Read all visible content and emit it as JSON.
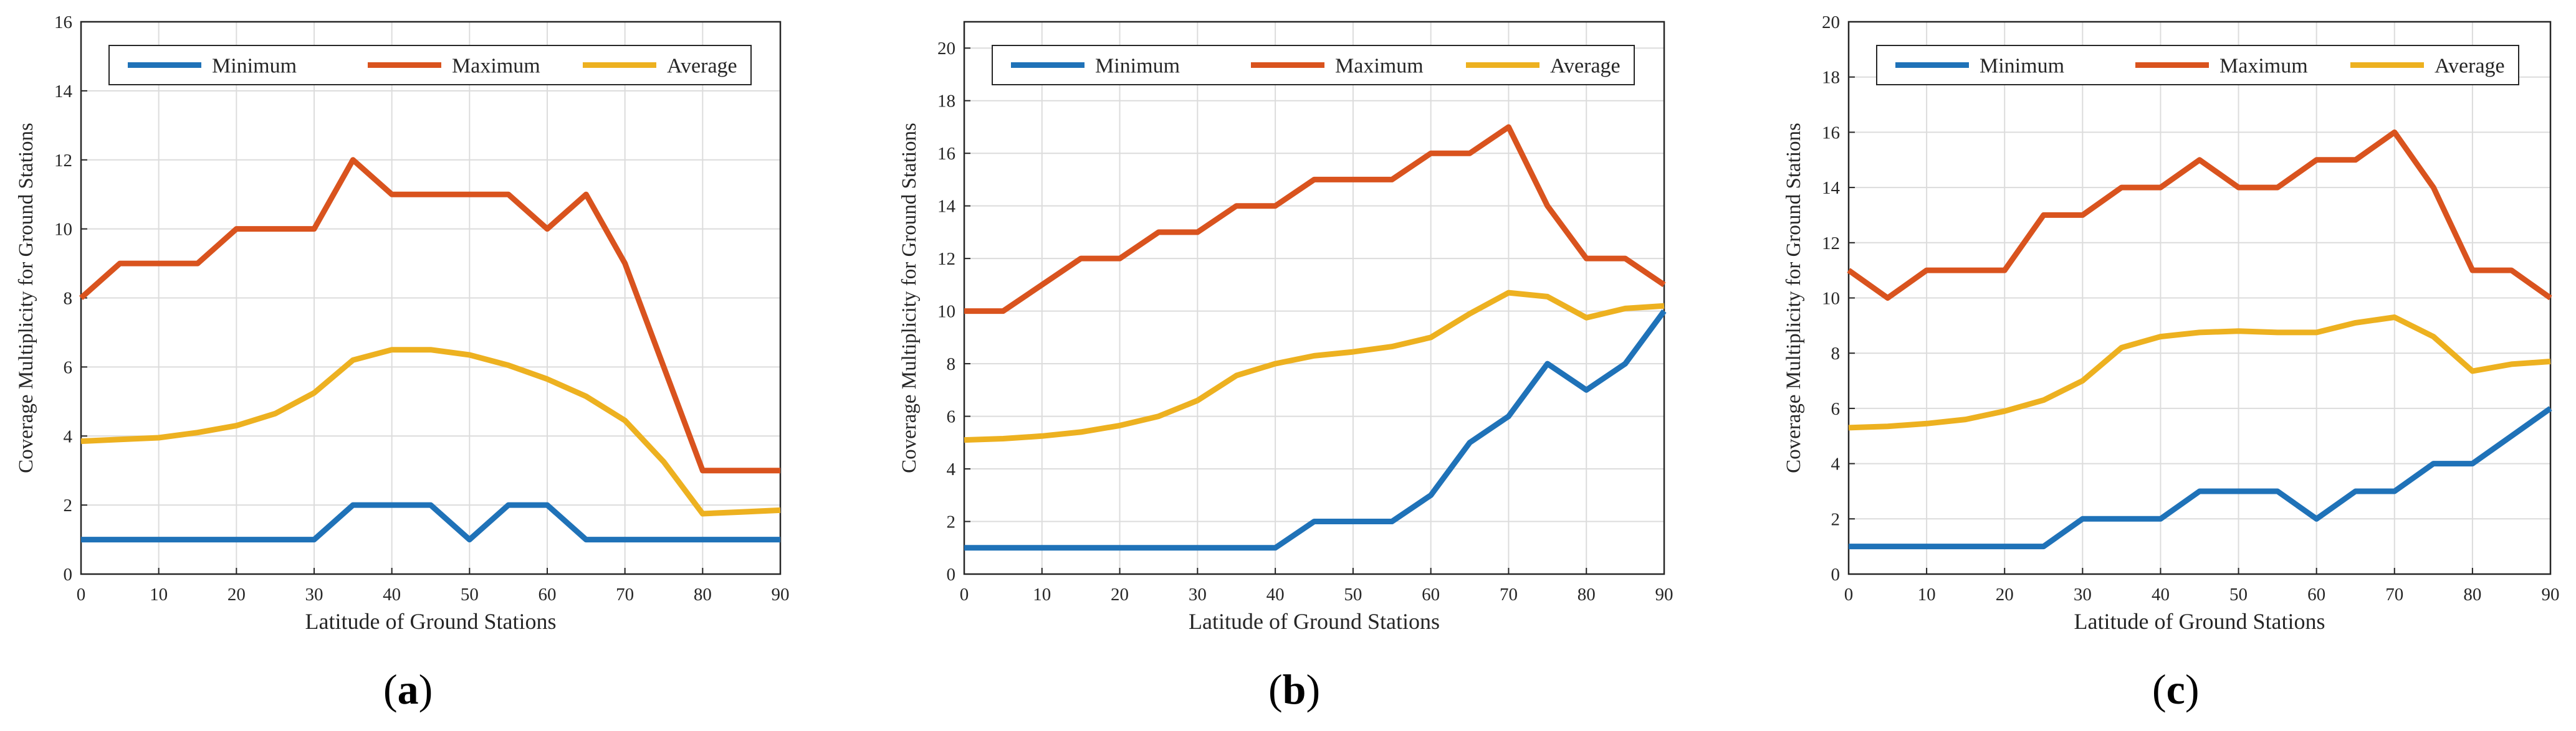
{
  "figure": {
    "panel_labels": [
      "a",
      "b",
      "c"
    ]
  },
  "colors": {
    "minimum": "#1f72b8",
    "maximum": "#d9531e",
    "average": "#edb120",
    "grid": "#dcdcdc",
    "axis": "#262626"
  },
  "chart_data": [
    {
      "type": "line",
      "panel": "a",
      "xlabel": "Latitude of Ground Stations",
      "ylabel": "Coverage Multiplicity for Ground Stations",
      "xlim": [
        0,
        90
      ],
      "ylim": [
        0,
        16
      ],
      "xticks": [
        "0",
        "10",
        "20",
        "30",
        "40",
        "50",
        "60",
        "70",
        "80",
        "90"
      ],
      "yticks": [
        "0",
        "2",
        "4",
        "6",
        "8",
        "10",
        "12",
        "14",
        "16"
      ],
      "grid": true,
      "legend_position": "top, horizontal",
      "x": [
        0,
        5,
        10,
        15,
        20,
        25,
        30,
        35,
        40,
        45,
        50,
        55,
        60,
        65,
        70,
        75,
        80,
        85,
        90
      ],
      "series": [
        {
          "name": "Minimum",
          "color_key": "minimum",
          "values": [
            1,
            1,
            1,
            1,
            1,
            1,
            1,
            2,
            2,
            2,
            1,
            2,
            2,
            1,
            1,
            1,
            1,
            1,
            1
          ]
        },
        {
          "name": "Maximum",
          "color_key": "maximum",
          "values": [
            8,
            9,
            9,
            9,
            10,
            10,
            10,
            12,
            11,
            11,
            11,
            11,
            10,
            11,
            9,
            6,
            3,
            3,
            3
          ]
        },
        {
          "name": "Average",
          "color_key": "average",
          "values": [
            3.85,
            3.9,
            3.95,
            4.1,
            4.3,
            4.65,
            5.25,
            6.2,
            6.5,
            6.5,
            6.35,
            6.05,
            5.65,
            5.15,
            4.45,
            3.25,
            1.75,
            1.8,
            1.85
          ]
        }
      ]
    },
    {
      "type": "line",
      "panel": "b",
      "xlabel": "Latitude of Ground Stations",
      "ylabel": "Coverage Multiplicity for Ground Stations",
      "xlim": [
        0,
        90
      ],
      "ylim": [
        0,
        21
      ],
      "xticks": [
        "0",
        "10",
        "20",
        "30",
        "40",
        "50",
        "60",
        "70",
        "80",
        "90"
      ],
      "yticks": [
        "0",
        "2",
        "4",
        "6",
        "8",
        "10",
        "12",
        "14",
        "16",
        "18",
        "20"
      ],
      "grid": true,
      "legend_position": "top, horizontal",
      "x": [
        0,
        5,
        10,
        15,
        20,
        25,
        30,
        35,
        40,
        45,
        50,
        55,
        60,
        65,
        70,
        75,
        80,
        85,
        90
      ],
      "series": [
        {
          "name": "Minimum",
          "color_key": "minimum",
          "values": [
            1,
            1,
            1,
            1,
            1,
            1,
            1,
            1,
            1,
            2,
            2,
            2,
            3,
            5,
            6,
            8,
            7,
            8,
            10
          ]
        },
        {
          "name": "Maximum",
          "color_key": "maximum",
          "values": [
            10,
            10,
            11,
            12,
            12,
            13,
            13,
            14,
            14,
            15,
            15,
            15,
            16,
            16,
            17,
            14,
            12,
            12,
            11
          ]
        },
        {
          "name": "Average",
          "color_key": "average",
          "values": [
            5.1,
            5.15,
            5.25,
            5.4,
            5.65,
            6.0,
            6.6,
            7.55,
            8.0,
            8.3,
            8.45,
            8.65,
            9.0,
            9.9,
            10.7,
            10.55,
            9.75,
            10.1,
            10.2
          ]
        }
      ]
    },
    {
      "type": "line",
      "panel": "c",
      "xlabel": "Latitude of Ground Stations",
      "ylabel": "Coverage Multiplicity for Ground Stations",
      "xlim": [
        0,
        90
      ],
      "ylim": [
        0,
        20
      ],
      "xticks": [
        "0",
        "10",
        "20",
        "30",
        "40",
        "50",
        "60",
        "70",
        "80",
        "90"
      ],
      "yticks": [
        "0",
        "2",
        "4",
        "6",
        "8",
        "10",
        "12",
        "14",
        "16",
        "18",
        "20"
      ],
      "grid": true,
      "legend_position": "top, horizontal",
      "x": [
        0,
        5,
        10,
        15,
        20,
        25,
        30,
        35,
        40,
        45,
        50,
        55,
        60,
        65,
        70,
        75,
        80,
        85,
        90
      ],
      "series": [
        {
          "name": "Minimum",
          "color_key": "minimum",
          "values": [
            1,
            1,
            1,
            1,
            1,
            1,
            2,
            2,
            2,
            3,
            3,
            3,
            2,
            3,
            3,
            4,
            4,
            5,
            6
          ]
        },
        {
          "name": "Maximum",
          "color_key": "maximum",
          "values": [
            11,
            10,
            11,
            11,
            11,
            13,
            13,
            14,
            14,
            15,
            14,
            14,
            15,
            15,
            16,
            14,
            11,
            11,
            10
          ]
        },
        {
          "name": "Average",
          "color_key": "average",
          "values": [
            5.3,
            5.35,
            5.45,
            5.6,
            5.9,
            6.3,
            7.0,
            8.2,
            8.6,
            8.75,
            8.8,
            8.75,
            8.75,
            9.1,
            9.3,
            8.6,
            7.35,
            7.6,
            7.7
          ]
        }
      ]
    }
  ]
}
